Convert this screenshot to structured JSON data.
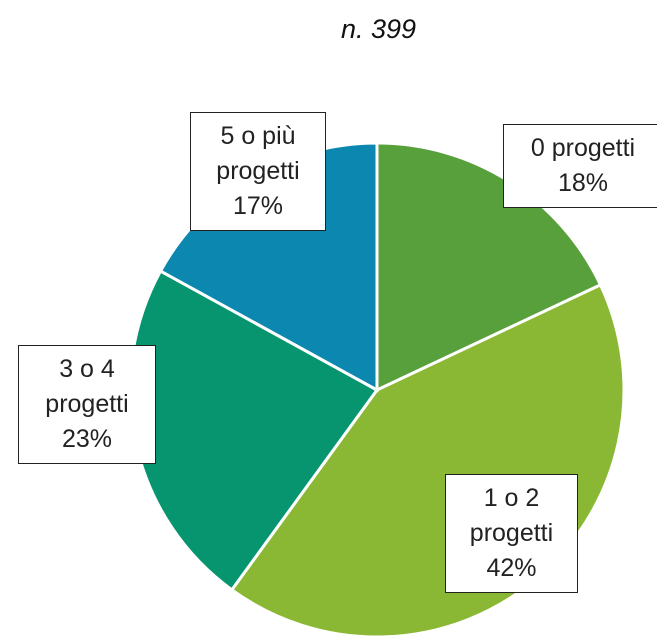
{
  "chart_data": {
    "type": "pie",
    "title": "n. 399",
    "categories": [
      "0 progetti",
      "1 o 2 progetti",
      "3 o 4 progetti",
      "5 o più progetti"
    ],
    "values": [
      18,
      42,
      23,
      17
    ],
    "value_labels": [
      "18%",
      "42%",
      "23%",
      "17%"
    ],
    "colors": [
      "#58a03c",
      "#8bb834",
      "#07956f",
      "#0b87b0"
    ]
  }
}
